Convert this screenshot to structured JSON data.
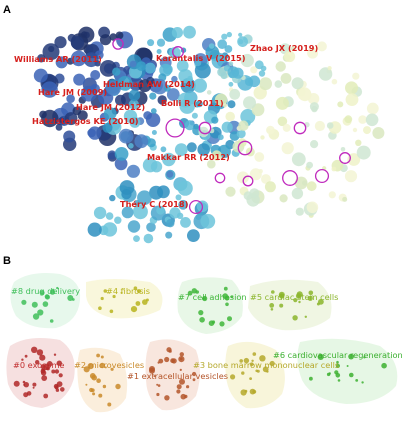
{
  "figure": {
    "panel_a": {
      "letter": "A",
      "author_labels": [
        "Williams AR (2011)",
        "Karantalis V (2015)",
        "Zhao JX (2019)",
        "Heldman AW (2014)",
        "Hare JM (2009)",
        "Hare JM (2012)",
        "Bolli R (2011)",
        "Hatzistergos KE (2010)",
        "Makkar RR (2012)",
        "Théry C (2018)"
      ]
    },
    "panel_b": {
      "letter": "B",
      "clusters": [
        {
          "label": "#8 drug delivery",
          "color": "#3fbf5a"
        },
        {
          "label": "#4 fibrosis",
          "color": "#b9b41e"
        },
        {
          "label": "#7 cell adhesion",
          "color": "#3fb63a"
        },
        {
          "label": "#5 cardiac stem cells",
          "color": "#8bb52c"
        },
        {
          "label": "#0 exosome",
          "color": "#c23030"
        },
        {
          "label": "#2 microvesicles",
          "color": "#c98a2a"
        },
        {
          "label": "#1 extracellular vesicles",
          "color": "#b4552a"
        },
        {
          "label": "#3 bone marrow mononuclear cells",
          "color": "#b5a82a"
        },
        {
          "label": "#6 cardiovascular regeneration",
          "color": "#3cb030"
        }
      ]
    }
  }
}
